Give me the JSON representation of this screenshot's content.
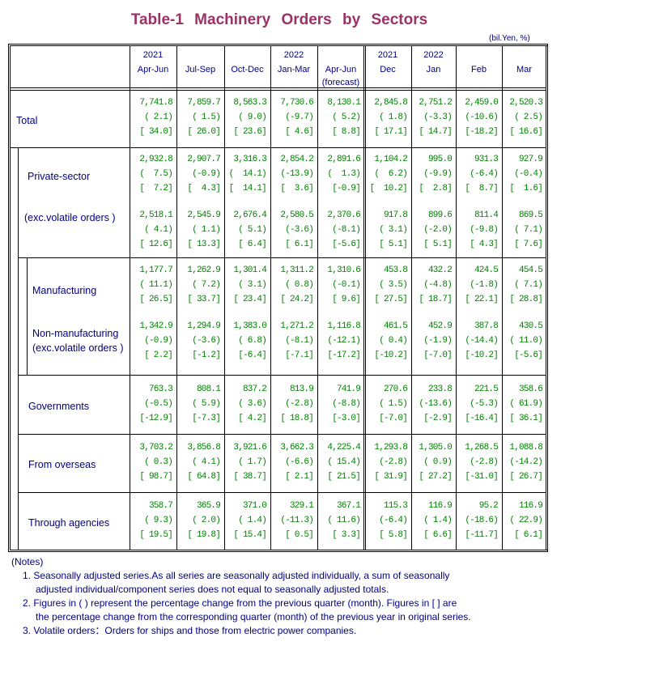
{
  "title": "Table-1   Machinery  Orders  by  Sectors",
  "unit": "(bil.Yen, %)",
  "columns": [
    {
      "year": "2021",
      "period": "Apr-Jun",
      "note": ""
    },
    {
      "year": "",
      "period": "Jul-Sep",
      "note": ""
    },
    {
      "year": "",
      "period": "Oct-Dec",
      "note": ""
    },
    {
      "year": "2022",
      "period": "Jan-Mar",
      "note": ""
    },
    {
      "year": "",
      "period": "Apr-Jun",
      "note": "(forecast)"
    },
    {
      "year": "2021",
      "period": "Dec",
      "note": ""
    },
    {
      "year": "2022",
      "period": "Jan",
      "note": ""
    },
    {
      "year": "",
      "period": "Feb",
      "note": ""
    },
    {
      "year": "",
      "period": "Mar",
      "note": ""
    }
  ],
  "rows": [
    {
      "label": "Total",
      "values": [
        "7,741.8",
        "7,859.7",
        "8,563.3",
        "7,730.6",
        "8,130.1",
        "2,845.8",
        "2,751.2",
        "2,459.0",
        "2,520.3"
      ],
      "change": [
        "( 2.1)",
        "( 1.5)",
        "( 9.0)",
        "(-9.7)",
        "( 5.2)",
        "( 1.8)",
        "(-3.3)",
        "(-10.6)",
        "( 2.5)"
      ],
      "yoy": [
        "[ 34.0]",
        "[ 26.0]",
        "[ 23.6]",
        "[ 4.6]",
        "[ 8.8]",
        "[ 17.1]",
        "[ 14.7]",
        "[-18.2]",
        "[ 16.6]"
      ]
    },
    {
      "label": "Private-sector",
      "values": [
        "2,932.8",
        "2,907.7",
        "3,316.3",
        "2,854.2",
        "2,891.6",
        "1,104.2",
        "995.0",
        "931.3",
        "927.9"
      ],
      "change": [
        "(  7.5)",
        "(-0.9)",
        "(  14.1)",
        "(-13.9)",
        "(  1.3)",
        "(  6.2)",
        "(-9.9)",
        "(-6.4)",
        "(-0.4)"
      ],
      "yoy": [
        "[  7.2]",
        "[  4.3]",
        "[  14.1]",
        "[  3.6]",
        "[-0.9]",
        "[  10.2]",
        "[  2.8]",
        "[  8.7]",
        "[  1.6]"
      ]
    },
    {
      "label": "(exc.volatile orders )",
      "values": [
        "2,518.1",
        "2,545.9",
        "2,676.4",
        "2,580.5",
        "2,370.6",
        "917.8",
        "899.6",
        "811.4",
        "869.5"
      ],
      "change": [
        "( 4.1)",
        "( 1.1)",
        "( 5.1)",
        "(-3.6)",
        "(-8.1)",
        "( 3.1)",
        "(-2.0)",
        "(-9.8)",
        "( 7.1)"
      ],
      "yoy": [
        "[ 12.6]",
        "[ 13.3]",
        "[ 6.4]",
        "[ 6.1]",
        "[-5.6]",
        "[ 5.1]",
        "[ 5.1]",
        "[ 4.3]",
        "[ 7.6]"
      ]
    },
    {
      "label": "Manufacturing",
      "values": [
        "1,177.7",
        "1,262.9",
        "1,301.4",
        "1,311.2",
        "1,310.6",
        "453.8",
        "432.2",
        "424.5",
        "454.5"
      ],
      "change": [
        "( 11.1)",
        "( 7.2)",
        "( 3.1)",
        "( 0.8)",
        "(-0.1)",
        "( 3.5)",
        "(-4.8)",
        "(-1.8)",
        "( 7.1)"
      ],
      "yoy": [
        "[ 26.5]",
        "[ 33.7]",
        "[ 23.4]",
        "[ 24.2]",
        "[ 9.6]",
        "[ 27.5]",
        "[ 18.7]",
        "[ 22.1]",
        "[ 28.8]"
      ]
    },
    {
      "label": "Non-manufacturing\n(exc.volatile orders )",
      "values": [
        "1,342.9",
        "1,294.9",
        "1,383.0",
        "1,271.2",
        "1,116.8",
        "461.5",
        "452.9",
        "387.8",
        "430.5"
      ],
      "change": [
        "(-0.9)",
        "(-3.6)",
        "( 6.8)",
        "(-8.1)",
        "(-12.1)",
        "( 0.4)",
        "(-1.9)",
        "(-14.4)",
        "( 11.0)"
      ],
      "yoy": [
        "[ 2.2]",
        "[-1.2]",
        "[-6.4]",
        "[-7.1]",
        "[-17.2]",
        "[-10.2]",
        "[-7.0]",
        "[-10.2]",
        "[-5.6]"
      ]
    },
    {
      "label": "Governments",
      "values": [
        "763.3",
        "808.1",
        "837.2",
        "813.9",
        "741.9",
        "270.6",
        "233.8",
        "221.5",
        "358.6"
      ],
      "change": [
        "(-0.5)",
        "( 5.9)",
        "( 3.6)",
        "(-2.8)",
        "(-8.8)",
        "( 1.5)",
        "(-13.6)",
        "(-5.3)",
        "( 61.9)"
      ],
      "yoy": [
        "[-12.9]",
        "[-7.3]",
        "[ 4.2]",
        "[ 18.8]",
        "[-3.0]",
        "[-7.0]",
        "[-2.9]",
        "[-16.4]",
        "[ 36.1]"
      ]
    },
    {
      "label": "From overseas",
      "values": [
        "3,703.2",
        "3,856.8",
        "3,921.6",
        "3,662.3",
        "4,225.4",
        "1,293.8",
        "1,305.0",
        "1,268.5",
        "1,088.8"
      ],
      "change": [
        "( 0.3)",
        "( 4.1)",
        "( 1.7)",
        "(-6.6)",
        "( 15.4)",
        "(-2.8)",
        "( 0.9)",
        "(-2.8)",
        "(-14.2)"
      ],
      "yoy": [
        "[ 98.7]",
        "[ 64.8]",
        "[ 38.7]",
        "[ 2.1]",
        "[ 21.5]",
        "[ 31.9]",
        "[ 27.2]",
        "[-31.0]",
        "[ 26.7]"
      ]
    },
    {
      "label": "Through agencies",
      "values": [
        "358.7",
        "365.9",
        "371.0",
        "329.1",
        "367.1",
        "115.3",
        "116.9",
        "95.2",
        "116.9"
      ],
      "change": [
        "( 9.3)",
        "( 2.0)",
        "( 1.4)",
        "(-11.3)",
        "( 11.6)",
        "(-6.4)",
        "( 1.4)",
        "(-18.6)",
        "( 22.9)"
      ],
      "yoy": [
        "[ 19.5]",
        "[ 19.8]",
        "[ 15.4]",
        "[ 0.5]",
        "[ 3.3]",
        "[ 5.8]",
        "[ 6.6]",
        "[-11.7]",
        "[ 6.1]"
      ]
    }
  ],
  "notes": {
    "heading": "(Notes)",
    "items": [
      {
        "line1": "1. Seasonally adjusted series.As all series are seasonally adjusted individually, a sum of seasonally",
        "line2": "adjusted individual/component series does not equal to seasonally adjusted totals."
      },
      {
        "line1": "2. Figures in ( ) represent the percentage change from the previous quarter (month). Figures in [ ] are",
        "line2": "the percentage change from the corresponding quarter (month) of the previous year in original series."
      },
      {
        "line1": "3. Volatile orders：Orders for ships and those from electric power companies.",
        "line2": ""
      }
    ]
  },
  "colors": {
    "title": "#993366",
    "text": "#000080",
    "values": "#008000"
  }
}
